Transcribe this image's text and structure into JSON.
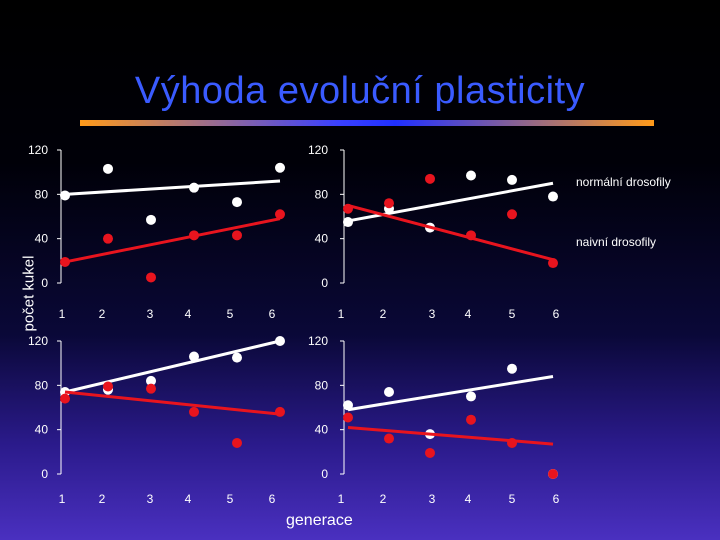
{
  "title": "Výhoda evoluční plasticity",
  "ylabel": "počet kukel",
  "xlabel": "generace",
  "colors": {
    "normal": "#ffffff",
    "naive": "#e8141e",
    "title": "#3a5bff"
  },
  "chart_data": [
    {
      "type": "scatter",
      "xlim": [
        1,
        6
      ],
      "ylim": [
        0,
        120
      ],
      "xticks": [
        "1",
        "2",
        "3",
        "4",
        "5",
        "6"
      ],
      "yticks": [
        "0",
        "40",
        "80",
        "120"
      ],
      "series": [
        {
          "values": [
            [
              1,
              79
            ],
            [
              2,
              103
            ],
            [
              3,
              57
            ],
            [
              4,
              86
            ],
            [
              5,
              73
            ],
            [
              6,
              104
            ]
          ],
          "trend": [
            80,
            92
          ]
        },
        {
          "values": [
            [
              1,
              19
            ],
            [
              2,
              40
            ],
            [
              3,
              5
            ],
            [
              4,
              43
            ],
            [
              5,
              43
            ],
            [
              6,
              62
            ]
          ],
          "trend": [
            19,
            58
          ]
        }
      ]
    },
    {
      "type": "scatter",
      "xlim": [
        1,
        6
      ],
      "ylim": [
        0,
        120
      ],
      "xticks": [
        "1",
        "2",
        "3",
        "4",
        "5",
        "6"
      ],
      "yticks": [
        "0",
        "40",
        "80",
        "120"
      ],
      "series": [
        {
          "name": "normální drosofily",
          "values": [
            [
              1,
              55
            ],
            [
              2,
              67
            ],
            [
              3,
              50
            ],
            [
              4,
              97
            ],
            [
              5,
              93
            ],
            [
              6,
              78
            ]
          ],
          "trend": [
            56,
            90
          ]
        },
        {
          "name": "naivní drosofily",
          "values": [
            [
              1,
              67
            ],
            [
              2,
              72
            ],
            [
              3,
              94
            ],
            [
              4,
              43
            ],
            [
              5,
              62
            ],
            [
              6,
              18
            ]
          ],
          "trend": [
            70,
            21
          ]
        }
      ]
    },
    {
      "type": "scatter",
      "xlim": [
        1,
        6
      ],
      "ylim": [
        0,
        120
      ],
      "xticks": [
        "1",
        "2",
        "3",
        "4",
        "5",
        "6"
      ],
      "yticks": [
        "0",
        "40",
        "80",
        "120"
      ],
      "series": [
        {
          "values": [
            [
              1,
              74
            ],
            [
              2,
              76
            ],
            [
              3,
              84
            ],
            [
              4,
              106
            ],
            [
              5,
              105
            ],
            [
              6,
              120
            ]
          ],
          "trend": [
            74,
            120
          ]
        },
        {
          "values": [
            [
              1,
              68
            ],
            [
              2,
              79
            ],
            [
              3,
              77
            ],
            [
              4,
              56
            ],
            [
              5,
              28
            ],
            [
              6,
              56
            ]
          ],
          "trend": [
            74,
            54
          ]
        }
      ]
    },
    {
      "type": "scatter",
      "xlim": [
        1,
        6
      ],
      "ylim": [
        0,
        120
      ],
      "xticks": [
        "1",
        "2",
        "3",
        "4",
        "5",
        "6"
      ],
      "yticks": [
        "0",
        "40",
        "80",
        "120"
      ],
      "series": [
        {
          "values": [
            [
              1,
              62
            ],
            [
              2,
              74
            ],
            [
              3,
              36
            ],
            [
              4,
              70
            ],
            [
              5,
              95
            ],
            [
              6,
              0
            ]
          ],
          "trend": [
            58,
            88
          ]
        },
        {
          "values": [
            [
              1,
              51
            ],
            [
              2,
              32
            ],
            [
              3,
              19
            ],
            [
              4,
              49
            ],
            [
              5,
              28
            ],
            [
              6,
              0
            ]
          ],
          "trend": [
            42,
            27
          ]
        }
      ]
    }
  ]
}
